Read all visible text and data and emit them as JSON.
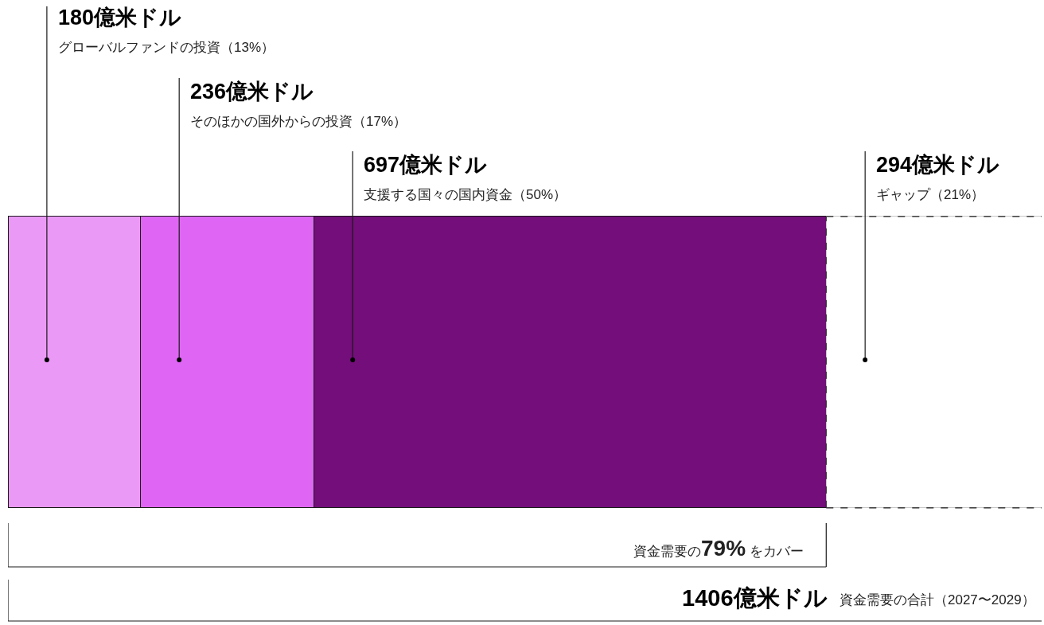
{
  "chart_data": {
    "type": "bar",
    "orientation": "horizontal",
    "stacked": true,
    "categories": [
      null
    ],
    "series": [
      {
        "color": "#eb99f7",
        "values": [
          180
        ],
        "value_labels": [
          "180億米ドル"
        ]
      },
      {
        "color": "#df66f5",
        "values": [
          236
        ],
        "value_labels": [
          "236億米ドル"
        ]
      },
      {
        "color": "#730e7a",
        "values": [
          697
        ],
        "value_labels": [
          "697億米ドル"
        ]
      },
      {
        "color": "#ffffff",
        "values": [
          294
        ],
        "value_labels": [
          "294億米ドル"
        ],
        "line_style": "dashed"
      }
    ],
    "xlim": [
      0,
      1406
    ],
    "tick_labels": false,
    "legend": false,
    "annotations": [
      "グローバルファンドの投資（13%）",
      "そのほかの国外からの投資（17%）",
      "支援する国々の国内資金（50%）",
      "ギャップ（21%）",
      "資金需要の79% をカバー",
      "1406億米ドル",
      "資金需要の合計（2027〜2029）"
    ]
  }
}
